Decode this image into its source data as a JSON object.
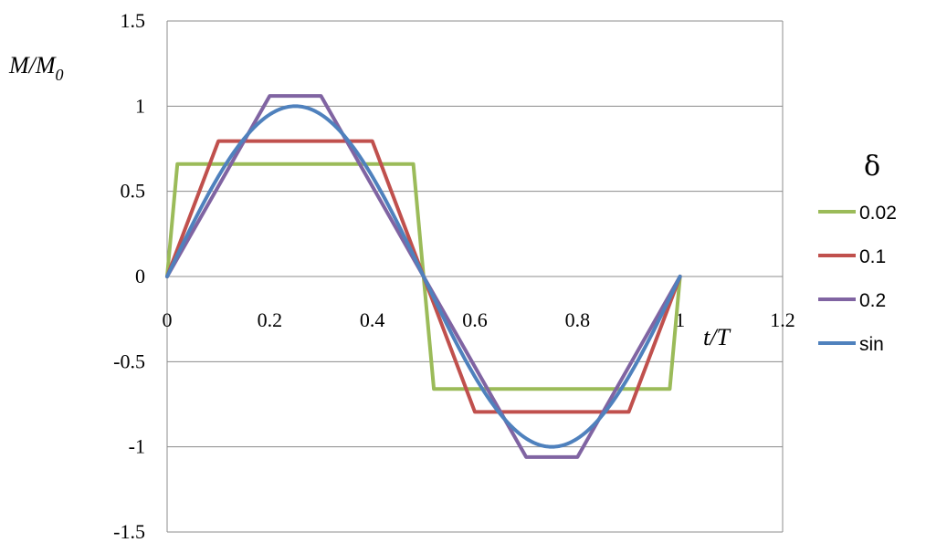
{
  "chart_data": {
    "type": "line",
    "xlabel": "t/T",
    "ylabel_main": "M/M",
    "ylabel_sub": "0",
    "xlim": [
      0,
      1.2
    ],
    "ylim": [
      -1.5,
      1.5
    ],
    "xticks": [
      0,
      0.2,
      0.4,
      0.6,
      0.8,
      1,
      1.2
    ],
    "xtick_labels": [
      "0",
      "0.2",
      "0.4",
      "0.6",
      "0.8",
      "1",
      "1.2"
    ],
    "yticks": [
      1.5,
      1,
      0.5,
      0,
      -0.5,
      -1,
      -1.5
    ],
    "ytick_labels": [
      "1.5",
      "1",
      "0.5",
      "0",
      "-0.5",
      "-1",
      "-1.5"
    ],
    "grid": "horizontal",
    "legend_title": "δ",
    "legend_position": "right",
    "series": [
      {
        "name": "0.02",
        "color": "#9BBB59",
        "x": [
          0,
          0.02,
          0.48,
          0.52,
          0.98,
          1.0
        ],
        "y": [
          0,
          0.66,
          0.66,
          -0.66,
          -0.66,
          0
        ]
      },
      {
        "name": "0.1",
        "color": "#C0504D",
        "x": [
          0,
          0.1,
          0.4,
          0.6,
          0.9,
          1.0
        ],
        "y": [
          0,
          0.795,
          0.795,
          -0.795,
          -0.795,
          0
        ]
      },
      {
        "name": "0.2",
        "color": "#8064A2",
        "x": [
          0,
          0.2,
          0.3,
          0.7,
          0.8,
          1.0
        ],
        "y": [
          0,
          1.06,
          1.06,
          -1.06,
          -1.06,
          0
        ]
      },
      {
        "name": "sin",
        "color": "#4F81BD",
        "function": "sin",
        "x_range": [
          0,
          1
        ]
      }
    ]
  }
}
